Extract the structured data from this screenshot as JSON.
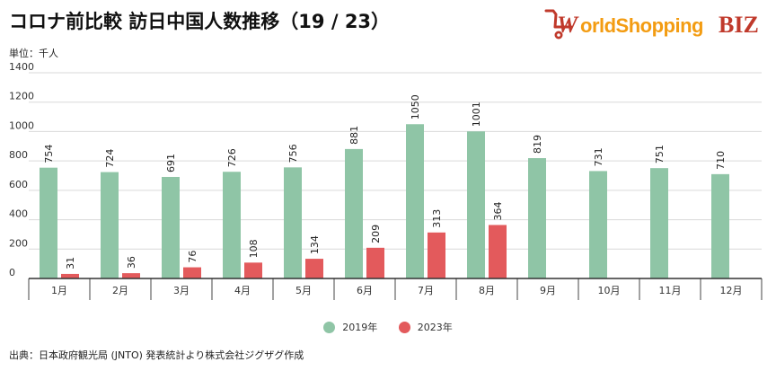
{
  "title": "コロナ前比較 訪日中国人数推移（19 / 23）",
  "logo": {
    "text_world": "World",
    "text_shopping": "Shopping",
    "text_biz": "BIZ"
  },
  "unit_label": "単位：千人",
  "source_label": "出典：日本政府観光局 (JNTO) 発表統計より株式会社ジグザグ作成",
  "colors": {
    "series_2019": "#8fc5a6",
    "series_2023": "#e35a5c",
    "grid": "#d9d9d9",
    "axis": "#333333"
  },
  "chart_data": {
    "type": "bar",
    "title": "コロナ前比較 訪日中国人数推移（19 / 23）",
    "ylabel": "単位：千人",
    "ylim": [
      0,
      1400
    ],
    "yticks": [
      0,
      200,
      400,
      600,
      800,
      1000,
      1200,
      1400
    ],
    "grid": true,
    "legend_position": "bottom",
    "categories": [
      "1月",
      "2月",
      "3月",
      "4月",
      "5月",
      "6月",
      "7月",
      "8月",
      "9月",
      "10月",
      "11月",
      "12月"
    ],
    "series": [
      {
        "name": "2019年",
        "values": [
          754,
          724,
          691,
          726,
          756,
          881,
          1050,
          1001,
          819,
          731,
          751,
          710
        ]
      },
      {
        "name": "2023年",
        "values": [
          31,
          36,
          76,
          108,
          134,
          209,
          313,
          364,
          null,
          null,
          null,
          null
        ]
      }
    ]
  }
}
